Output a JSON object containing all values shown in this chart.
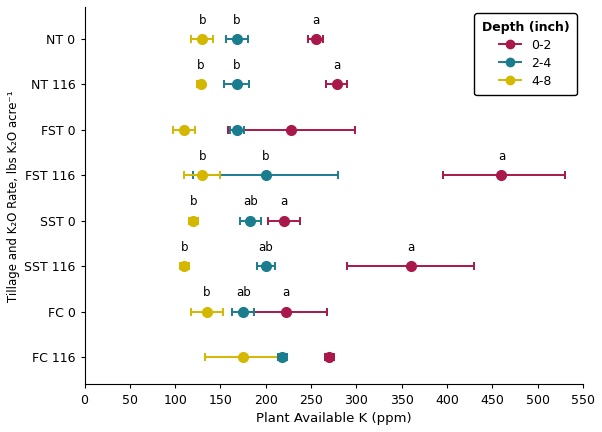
{
  "title": "",
  "xlabel": "Plant Available K (ppm)",
  "ylabel": "Tillage and K₂O Rate, lbs K₂O acre⁻¹",
  "xlim": [
    0,
    550
  ],
  "xticks": [
    0,
    50,
    100,
    150,
    200,
    250,
    300,
    350,
    400,
    450,
    500,
    550
  ],
  "rows": [
    "NT 0",
    "NT 116",
    "FST 0",
    "FST 116",
    "SST 0",
    "SST 116",
    "FC 0",
    "FC 116"
  ],
  "depths": [
    "0-2",
    "2-4",
    "4-8"
  ],
  "colors": {
    "0-2": "#a8184a",
    "2-4": "#1a7d8e",
    "4-8": "#d4b800"
  },
  "data": {
    "NT 0": {
      "0-2": {
        "mean": 255,
        "err_lo": 8,
        "err_hi": 8
      },
      "2-4": {
        "mean": 168,
        "err_lo": 12,
        "err_hi": 12
      },
      "4-8": {
        "mean": 130,
        "err_lo": 12,
        "err_hi": 12
      }
    },
    "NT 116": {
      "0-2": {
        "mean": 278,
        "err_lo": 12,
        "err_hi": 12
      },
      "2-4": {
        "mean": 168,
        "err_lo": 14,
        "err_hi": 14
      },
      "4-8": {
        "mean": 128,
        "err_lo": 4,
        "err_hi": 4
      }
    },
    "FST 0": {
      "0-2": {
        "mean": 228,
        "err_lo": 70,
        "err_hi": 70
      },
      "2-4": {
        "mean": 168,
        "err_lo": 8,
        "err_hi": 8
      },
      "4-8": {
        "mean": 110,
        "err_lo": 12,
        "err_hi": 12
      }
    },
    "FST 116": {
      "0-2": {
        "mean": 460,
        "err_lo": 65,
        "err_hi": 70
      },
      "2-4": {
        "mean": 200,
        "err_lo": 80,
        "err_hi": 80
      },
      "4-8": {
        "mean": 130,
        "err_lo": 20,
        "err_hi": 20
      }
    },
    "SST 0": {
      "0-2": {
        "mean": 220,
        "err_lo": 18,
        "err_hi": 18
      },
      "2-4": {
        "mean": 183,
        "err_lo": 12,
        "err_hi": 12
      },
      "4-8": {
        "mean": 120,
        "err_lo": 5,
        "err_hi": 5
      }
    },
    "SST 116": {
      "0-2": {
        "mean": 360,
        "err_lo": 70,
        "err_hi": 70
      },
      "2-4": {
        "mean": 200,
        "err_lo": 10,
        "err_hi": 10
      },
      "4-8": {
        "mean": 110,
        "err_lo": 5,
        "err_hi": 5
      }
    },
    "FC 0": {
      "0-2": {
        "mean": 222,
        "err_lo": 45,
        "err_hi": 45
      },
      "2-4": {
        "mean": 175,
        "err_lo": 12,
        "err_hi": 12
      },
      "4-8": {
        "mean": 135,
        "err_lo": 18,
        "err_hi": 18
      }
    },
    "FC 116": {
      "0-2": {
        "mean": 270,
        "err_lo": 5,
        "err_hi": 5
      },
      "2-4": {
        "mean": 218,
        "err_lo": 5,
        "err_hi": 5
      },
      "4-8": {
        "mean": 175,
        "err_lo": 42,
        "err_hi": 42
      }
    }
  },
  "sig_labels": {
    "NT 0": {
      "0-2": "a",
      "2-4": "b",
      "4-8": "b"
    },
    "NT 116": {
      "0-2": "a",
      "2-4": "b",
      "4-8": "b"
    },
    "FST 0": {
      "0-2": null,
      "2-4": null,
      "4-8": null
    },
    "FST 116": {
      "0-2": "a",
      "2-4": "b",
      "4-8": "b"
    },
    "SST 0": {
      "0-2": "a",
      "2-4": "ab",
      "4-8": "b"
    },
    "SST 116": {
      "0-2": "a",
      "2-4": "ab",
      "4-8": "b"
    },
    "FC 0": {
      "0-2": "a",
      "2-4": "ab",
      "4-8": "b"
    },
    "FC 116": {
      "0-2": null,
      "2-4": null,
      "4-8": null
    }
  },
  "depth_order": [
    "0-2",
    "2-4",
    "4-8"
  ],
  "marker_size": 7,
  "capsize": 3,
  "linewidth": 1.4,
  "figsize": [
    6.02,
    4.32
  ],
  "dpi": 100,
  "background_color": "#ffffff",
  "legend_title": "Depth (inch)",
  "font_size": 9,
  "tick_font_size": 9,
  "label_font_size": 8.5,
  "sig_font_size": 8.5
}
